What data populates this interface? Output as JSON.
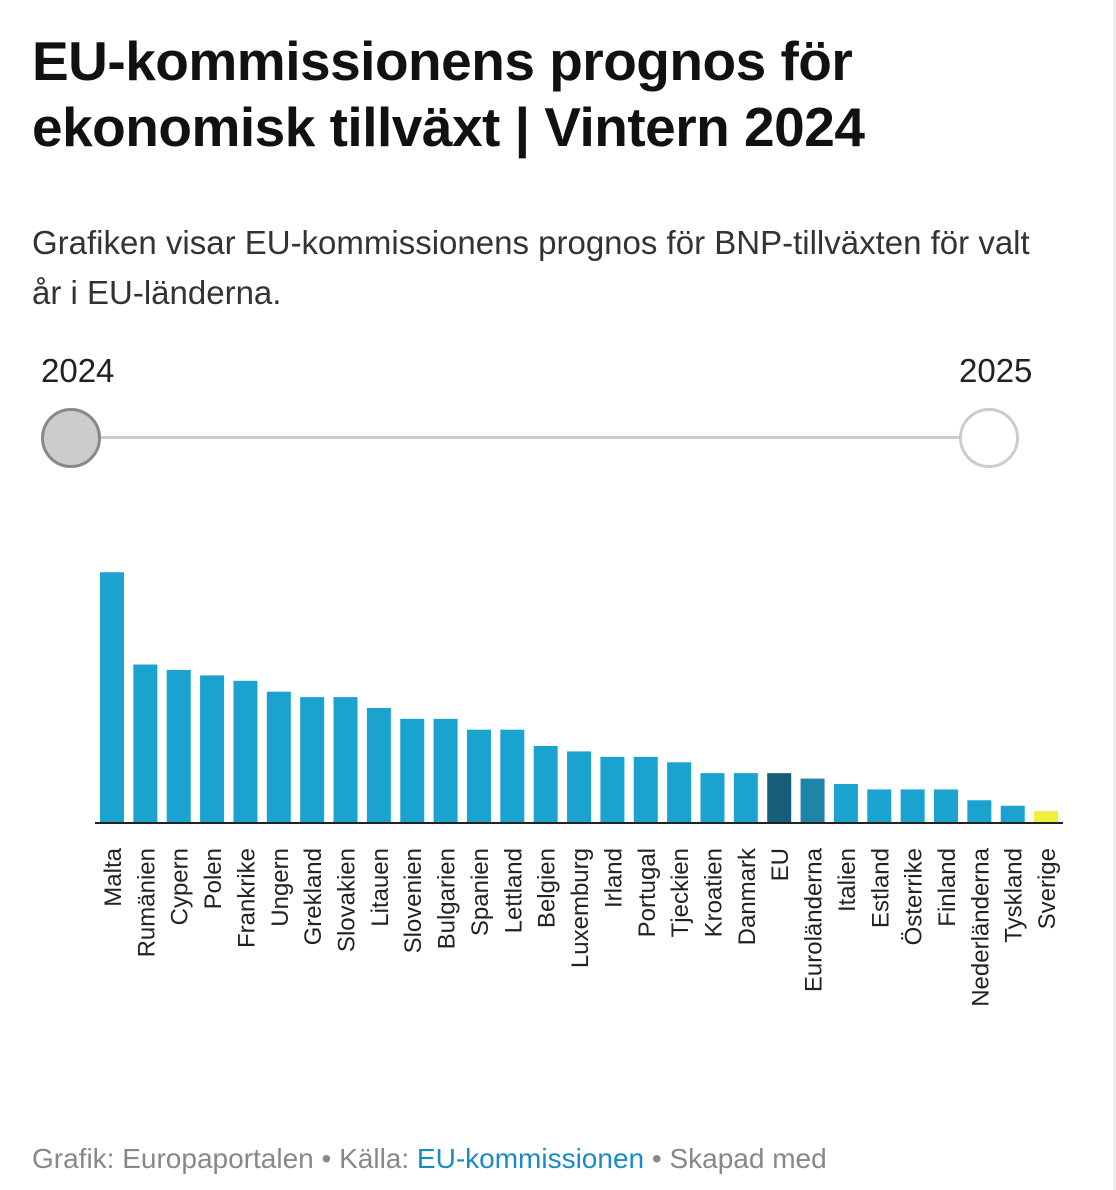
{
  "header": {
    "title": "EU-kommissionens prognos för ekonomisk tillväxt | Vintern 2024",
    "subtitle": "Grafiken visar EU-kommissionens prognos för BNP-tillväxten för valt år i EU-länderna."
  },
  "slider": {
    "options": [
      "2024",
      "2025"
    ],
    "selected": "2024"
  },
  "chart_data": {
    "type": "bar",
    "categories": [
      "Malta",
      "Rumänien",
      "Cypern",
      "Polen",
      "Frankrike",
      "Ungern",
      "Grekland",
      "Slovakien",
      "Litauen",
      "Slovenien",
      "Bulgarien",
      "Spanien",
      "Lettland",
      "Belgien",
      "Luxemburg",
      "Irland",
      "Portugal",
      "Tjeckien",
      "Kroatien",
      "Danmark",
      "EU",
      "Euroländerna",
      "Italien",
      "Estland",
      "Österrike",
      "Finland",
      "Nederländerna",
      "Tyskland",
      "Sverige"
    ],
    "values": [
      4.6,
      2.9,
      2.8,
      2.7,
      2.6,
      2.4,
      2.3,
      2.3,
      2.1,
      1.9,
      1.9,
      1.7,
      1.7,
      1.4,
      1.3,
      1.2,
      1.2,
      1.1,
      0.9,
      0.9,
      0.9,
      0.8,
      0.7,
      0.6,
      0.6,
      0.6,
      0.4,
      0.3,
      0.2
    ],
    "colors": {
      "default": "#1ba3cf",
      "EU": "#155f7a",
      "Euroländerna": "#1f84a5",
      "Sverige": "#f2ee3c"
    },
    "grid": false
  },
  "footer": {
    "graphic": "Grafik: Europaportalen",
    "sep": " • ",
    "source_label": "Källa: ",
    "source_link": "EU-kommissionen",
    "made_with": "Skapad med"
  }
}
